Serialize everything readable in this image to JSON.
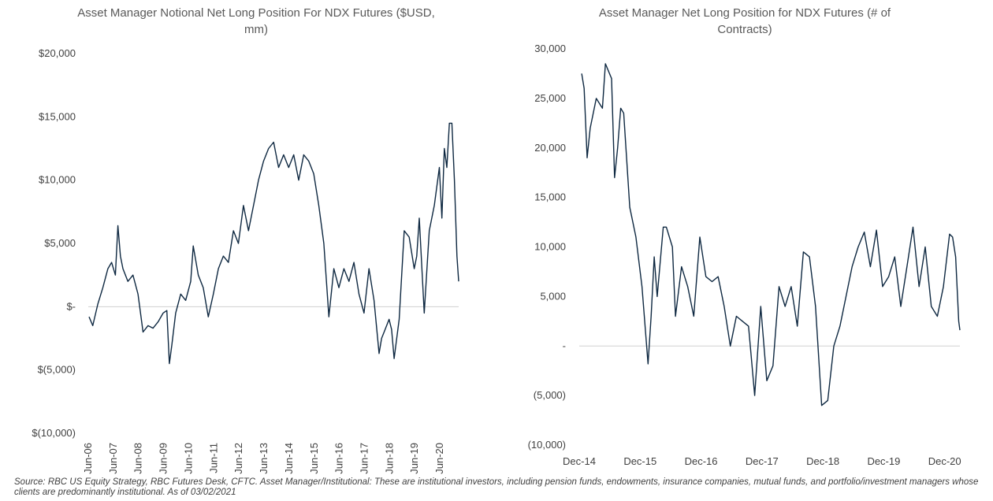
{
  "chart_data": [
    {
      "type": "line",
      "title": "Asset Manager Notional Net Long Position For NDX Futures ($USD, mm)",
      "xlabel": "",
      "ylabel": "",
      "ylim": [
        -10000,
        20000
      ],
      "yticks": [
        -10000,
        -5000,
        0,
        5000,
        10000,
        15000,
        20000
      ],
      "ytick_labels": [
        "$(10,000)",
        "$(5,000)",
        "$-",
        "$5,000",
        "$10,000",
        "$15,000",
        "$20,000"
      ],
      "xlim": [
        2006.42,
        2021.17
      ],
      "xticks": [
        2006.42,
        2007.42,
        2008.42,
        2009.42,
        2010.42,
        2011.42,
        2012.42,
        2013.42,
        2014.42,
        2015.42,
        2016.42,
        2017.42,
        2018.42,
        2019.42,
        2020.42
      ],
      "xtick_labels": [
        "Jun-06",
        "Jun-07",
        "Jun-08",
        "Jun-09",
        "Jun-10",
        "Jun-11",
        "Jun-12",
        "Jun-13",
        "Jun-14",
        "Jun-15",
        "Jun-16",
        "Jun-17",
        "Jun-18",
        "Jun-19",
        "Jun-20"
      ],
      "grid": false,
      "color": "#0e2841",
      "series": [
        {
          "x": [
            2006.45,
            2006.6,
            2006.8,
            2007.0,
            2007.2,
            2007.35,
            2007.5,
            2007.6,
            2007.7,
            2007.8,
            2008.0,
            2008.2,
            2008.4,
            2008.6,
            2008.8,
            2009.0,
            2009.2,
            2009.4,
            2009.55,
            2009.65,
            2009.75,
            2009.9,
            2010.1,
            2010.3,
            2010.5,
            2010.6,
            2010.8,
            2011.0,
            2011.2,
            2011.4,
            2011.6,
            2011.8,
            2012.0,
            2012.2,
            2012.4,
            2012.6,
            2012.8,
            2013.0,
            2013.2,
            2013.4,
            2013.6,
            2013.8,
            2014.0,
            2014.2,
            2014.4,
            2014.6,
            2014.8,
            2015.0,
            2015.2,
            2015.4,
            2015.6,
            2015.8,
            2016.0,
            2016.2,
            2016.4,
            2016.6,
            2016.8,
            2017.0,
            2017.2,
            2017.4,
            2017.6,
            2017.8,
            2018.0,
            2018.1,
            2018.2,
            2018.4,
            2018.5,
            2018.6,
            2018.8,
            2019.0,
            2019.2,
            2019.4,
            2019.5,
            2019.6,
            2019.8,
            2020.0,
            2020.2,
            2020.4,
            2020.5,
            2020.6,
            2020.7,
            2020.8,
            2020.9,
            2021.0,
            2021.1,
            2021.17
          ],
          "values": [
            -800,
            -1500,
            200,
            1500,
            3000,
            3500,
            2500,
            6400,
            4000,
            3000,
            2000,
            2500,
            1000,
            -2000,
            -1500,
            -1700,
            -1200,
            -500,
            -300,
            -4500,
            -3000,
            -500,
            1000,
            500,
            2000,
            4800,
            2500,
            1500,
            -800,
            1000,
            3000,
            4000,
            3500,
            6000,
            5000,
            8000,
            6000,
            8000,
            10000,
            11500,
            12500,
            13000,
            11000,
            12000,
            11000,
            12000,
            10000,
            12000,
            11500,
            10500,
            8000,
            5000,
            -800,
            3000,
            1500,
            3000,
            2000,
            3500,
            1000,
            -500,
            3000,
            500,
            -3700,
            -2500,
            -2000,
            -1000,
            -1800,
            -4100,
            -1000,
            6000,
            5500,
            3000,
            4000,
            7000,
            -500,
            6000,
            8000,
            11000,
            7000,
            12500,
            11000,
            14500,
            14500,
            10000,
            4000,
            2000
          ]
        }
      ]
    },
    {
      "type": "line",
      "title": "Asset Manager Net Long Position for NDX Futures (# of Contracts)",
      "xlabel": "",
      "ylabel": "",
      "ylim": [
        -10000,
        30000
      ],
      "yticks": [
        -10000,
        -5000,
        0,
        5000,
        10000,
        15000,
        20000,
        25000,
        30000
      ],
      "ytick_labels": [
        "(10,000)",
        "(5,000)",
        "-",
        "5,000",
        "10,000",
        "15,000",
        "20,000",
        "25,000",
        "30,000"
      ],
      "xlim": [
        2014.92,
        2021.17
      ],
      "xticks": [
        2014.92,
        2015.92,
        2016.92,
        2017.92,
        2018.92,
        2019.92,
        2020.92
      ],
      "xtick_labels": [
        "Dec-14",
        "Dec-15",
        "Dec-16",
        "Dec-17",
        "Dec-18",
        "Dec-19",
        "Dec-20"
      ],
      "grid": false,
      "color": "#0e2841",
      "series": [
        {
          "x": [
            2014.96,
            2015.0,
            2015.05,
            2015.1,
            2015.2,
            2015.3,
            2015.35,
            2015.45,
            2015.5,
            2015.55,
            2015.6,
            2015.65,
            2015.75,
            2015.85,
            2015.95,
            2016.05,
            2016.1,
            2016.15,
            2016.2,
            2016.3,
            2016.35,
            2016.45,
            2016.5,
            2016.6,
            2016.7,
            2016.8,
            2016.9,
            2017.0,
            2017.1,
            2017.2,
            2017.3,
            2017.4,
            2017.5,
            2017.6,
            2017.7,
            2017.8,
            2017.9,
            2018.0,
            2018.1,
            2018.2,
            2018.3,
            2018.4,
            2018.5,
            2018.6,
            2018.7,
            2018.8,
            2018.9,
            2019.0,
            2019.1,
            2019.2,
            2019.3,
            2019.4,
            2019.5,
            2019.6,
            2019.7,
            2019.8,
            2019.9,
            2020.0,
            2020.1,
            2020.2,
            2020.3,
            2020.4,
            2020.5,
            2020.6,
            2020.7,
            2020.8,
            2020.9,
            2021.0,
            2021.05,
            2021.1,
            2021.15,
            2021.17
          ],
          "values": [
            27500,
            26000,
            19000,
            22000,
            25000,
            24000,
            28500,
            27000,
            17000,
            20000,
            24000,
            23500,
            14000,
            11000,
            6000,
            -1800,
            3000,
            9000,
            5000,
            12000,
            12000,
            10000,
            3000,
            8000,
            6000,
            3000,
            11000,
            7000,
            6500,
            7000,
            4000,
            0,
            3000,
            2500,
            2000,
            -5000,
            4000,
            -3500,
            -2000,
            6000,
            4000,
            6000,
            2000,
            9500,
            9000,
            4000,
            -6000,
            -5500,
            0,
            2000,
            5000,
            8000,
            10000,
            11500,
            8000,
            11700,
            6000,
            7000,
            9000,
            4000,
            8000,
            12000,
            6000,
            10000,
            4000,
            3000,
            6000,
            11300,
            11000,
            9000,
            2500,
            1600
          ]
        }
      ]
    }
  ],
  "source_note": "Source: RBC US Equity Strategy, RBC Futures Desk, CFTC. Asset Manager/Institutional: These are institutional investors, including pension funds, endowments, insurance companies, mutual funds, and portfolio/investment managers whose clients are predominantly institutional. As of 03/02/2021"
}
